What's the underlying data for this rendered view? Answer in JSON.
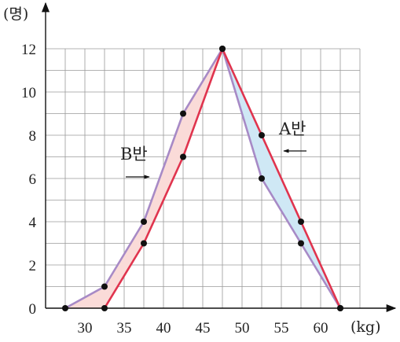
{
  "chart_data": {
    "type": "line",
    "xlabel": "(kg)",
    "ylabel": "(명)",
    "xlim": [
      25,
      65
    ],
    "ylim": [
      0,
      12
    ],
    "x_ticks": [
      "30",
      "35",
      "40",
      "45",
      "50",
      "55",
      "60"
    ],
    "x_tick_values": [
      30,
      35,
      40,
      45,
      50,
      55,
      60
    ],
    "y_ticks": [
      "0",
      "2",
      "4",
      "6",
      "8",
      "10",
      "12"
    ],
    "y_tick_values": [
      0,
      2,
      4,
      6,
      8,
      10,
      12
    ],
    "grid": true,
    "series": [
      {
        "name": "A반",
        "color": "#e0344e",
        "x": [
          32.5,
          37.5,
          42.5,
          47.5,
          52.5,
          57.5,
          62.5
        ],
        "y": [
          0,
          3,
          7,
          12,
          8,
          4,
          0
        ]
      },
      {
        "name": "B반",
        "color": "#a78ac6",
        "x": [
          27.5,
          32.5,
          37.5,
          42.5,
          47.5,
          52.5,
          57.5,
          62.5
        ],
        "y": [
          0,
          1,
          4,
          9,
          12,
          6,
          3,
          0
        ]
      }
    ],
    "fills": {
      "a_greater": "#cfe8f5",
      "b_greater": "#fadbd8"
    },
    "annotations": [
      {
        "text": "A반",
        "series": "A반",
        "arrow": "left"
      },
      {
        "text": "B반",
        "series": "B반",
        "arrow": "right"
      }
    ]
  }
}
